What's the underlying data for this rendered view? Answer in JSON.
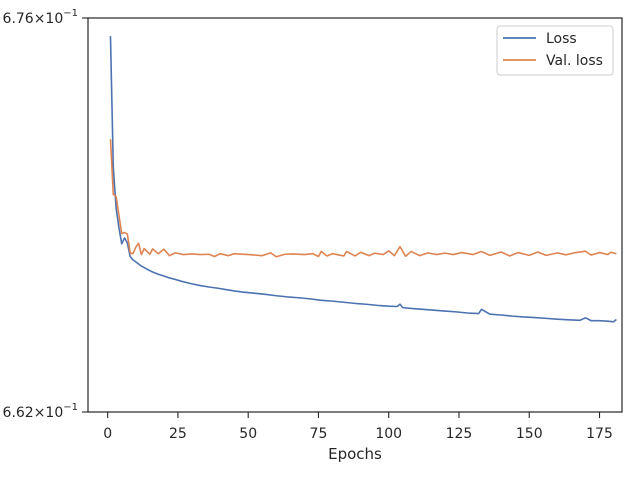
{
  "chart_data": {
    "type": "line",
    "title": "",
    "xlabel": "Epochs",
    "ylabel": "",
    "yscale": "log",
    "xlim": [
      -7,
      183
    ],
    "ylim": [
      0.662,
      0.676
    ],
    "x_ticks": [
      0,
      25,
      50,
      75,
      100,
      125,
      150,
      175
    ],
    "x_tick_labels": [
      "0",
      "25",
      "50",
      "75",
      "100",
      "125",
      "150",
      "175"
    ],
    "y_tick_labels": [
      {
        "value": 0.676,
        "mantissa": "6.76",
        "base": "10",
        "exponent": "−1"
      },
      {
        "value": 0.662,
        "mantissa": "6.62",
        "base": "10",
        "exponent": "−1"
      }
    ],
    "grid": false,
    "legend_position": "top-right",
    "series": [
      {
        "name": "Loss",
        "color": "#4c72b0",
        "points": [
          [
            1,
            0.67535
          ],
          [
            2,
            0.67066
          ],
          [
            3,
            0.66921
          ],
          [
            4,
            0.66851
          ],
          [
            5,
            0.66794
          ],
          [
            6,
            0.66815
          ],
          [
            7,
            0.66797
          ],
          [
            8,
            0.66749
          ],
          [
            9,
            0.66737
          ],
          [
            10,
            0.6673
          ],
          [
            12,
            0.66715
          ],
          [
            14,
            0.66704
          ],
          [
            16,
            0.66694
          ],
          [
            18,
            0.66686
          ],
          [
            20,
            0.6668
          ],
          [
            22,
            0.66673
          ],
          [
            24,
            0.66668
          ],
          [
            26,
            0.66662
          ],
          [
            28,
            0.66657
          ],
          [
            30,
            0.66652
          ],
          [
            33,
            0.66646
          ],
          [
            36,
            0.66641
          ],
          [
            39,
            0.66637
          ],
          [
            42,
            0.66632
          ],
          [
            45,
            0.66627
          ],
          [
            48,
            0.66623
          ],
          [
            52,
            0.66619
          ],
          [
            56,
            0.66615
          ],
          [
            60,
            0.6661
          ],
          [
            64,
            0.66606
          ],
          [
            68,
            0.66603
          ],
          [
            72,
            0.66599
          ],
          [
            76,
            0.66594
          ],
          [
            80,
            0.66591
          ],
          [
            84,
            0.66587
          ],
          [
            88,
            0.66583
          ],
          [
            92,
            0.6658
          ],
          [
            96,
            0.66576
          ],
          [
            100,
            0.66573
          ],
          [
            103,
            0.66572
          ],
          [
            104,
            0.6658
          ],
          [
            105,
            0.66568
          ],
          [
            108,
            0.66565
          ],
          [
            112,
            0.66562
          ],
          [
            116,
            0.66559
          ],
          [
            120,
            0.66556
          ],
          [
            124,
            0.66553
          ],
          [
            128,
            0.66549
          ],
          [
            132,
            0.66547
          ],
          [
            133,
            0.66562
          ],
          [
            136,
            0.66545
          ],
          [
            140,
            0.66542
          ],
          [
            144,
            0.66538
          ],
          [
            148,
            0.66535
          ],
          [
            152,
            0.66533
          ],
          [
            156,
            0.6653
          ],
          [
            160,
            0.66527
          ],
          [
            164,
            0.66525
          ],
          [
            168,
            0.66523
          ],
          [
            170,
            0.66532
          ],
          [
            172,
            0.66522
          ],
          [
            175,
            0.66522
          ],
          [
            178,
            0.6652
          ],
          [
            180,
            0.66518
          ],
          [
            181,
            0.66526
          ]
        ]
      },
      {
        "name": "Val. loss",
        "color": "#dd8452",
        "points": [
          [
            1,
            0.67166
          ],
          [
            2,
            0.66969
          ],
          [
            3,
            0.66963
          ],
          [
            4,
            0.66896
          ],
          [
            5,
            0.6683
          ],
          [
            6,
            0.66834
          ],
          [
            7,
            0.66829
          ],
          [
            8,
            0.66762
          ],
          [
            9,
            0.66759
          ],
          [
            10,
            0.66782
          ],
          [
            11,
            0.66796
          ],
          [
            12,
            0.66756
          ],
          [
            13,
            0.66777
          ],
          [
            15,
            0.66757
          ],
          [
            16,
            0.66776
          ],
          [
            18,
            0.66759
          ],
          [
            20,
            0.66775
          ],
          [
            22,
            0.66752
          ],
          [
            24,
            0.66762
          ],
          [
            27,
            0.66756
          ],
          [
            30,
            0.66758
          ],
          [
            33,
            0.66756
          ],
          [
            36,
            0.66757
          ],
          [
            38,
            0.66749
          ],
          [
            40,
            0.66759
          ],
          [
            43,
            0.66752
          ],
          [
            45,
            0.66759
          ],
          [
            50,
            0.66756
          ],
          [
            55,
            0.66752
          ],
          [
            58,
            0.66762
          ],
          [
            60,
            0.66748
          ],
          [
            63,
            0.66757
          ],
          [
            66,
            0.66758
          ],
          [
            70,
            0.66756
          ],
          [
            73,
            0.66759
          ],
          [
            75,
            0.66749
          ],
          [
            76,
            0.66767
          ],
          [
            78,
            0.66751
          ],
          [
            80,
            0.66759
          ],
          [
            84,
            0.66751
          ],
          [
            85,
            0.66767
          ],
          [
            88,
            0.66751
          ],
          [
            90,
            0.66764
          ],
          [
            93,
            0.66752
          ],
          [
            95,
            0.66761
          ],
          [
            98,
            0.66756
          ],
          [
            100,
            0.66769
          ],
          [
            102,
            0.66752
          ],
          [
            104,
            0.66784
          ],
          [
            106,
            0.6675
          ],
          [
            108,
            0.66767
          ],
          [
            111,
            0.66752
          ],
          [
            114,
            0.66762
          ],
          [
            117,
            0.66756
          ],
          [
            120,
            0.66761
          ],
          [
            123,
            0.66756
          ],
          [
            126,
            0.66763
          ],
          [
            130,
            0.66756
          ],
          [
            133,
            0.66767
          ],
          [
            136,
            0.66753
          ],
          [
            140,
            0.66765
          ],
          [
            143,
            0.66751
          ],
          [
            146,
            0.66763
          ],
          [
            150,
            0.66753
          ],
          [
            153,
            0.66765
          ],
          [
            156,
            0.66753
          ],
          [
            160,
            0.66762
          ],
          [
            163,
            0.66755
          ],
          [
            166,
            0.66762
          ],
          [
            170,
            0.66768
          ],
          [
            172,
            0.66754
          ],
          [
            175,
            0.66763
          ],
          [
            178,
            0.66756
          ],
          [
            179,
            0.66764
          ],
          [
            181,
            0.66759
          ]
        ]
      }
    ]
  }
}
